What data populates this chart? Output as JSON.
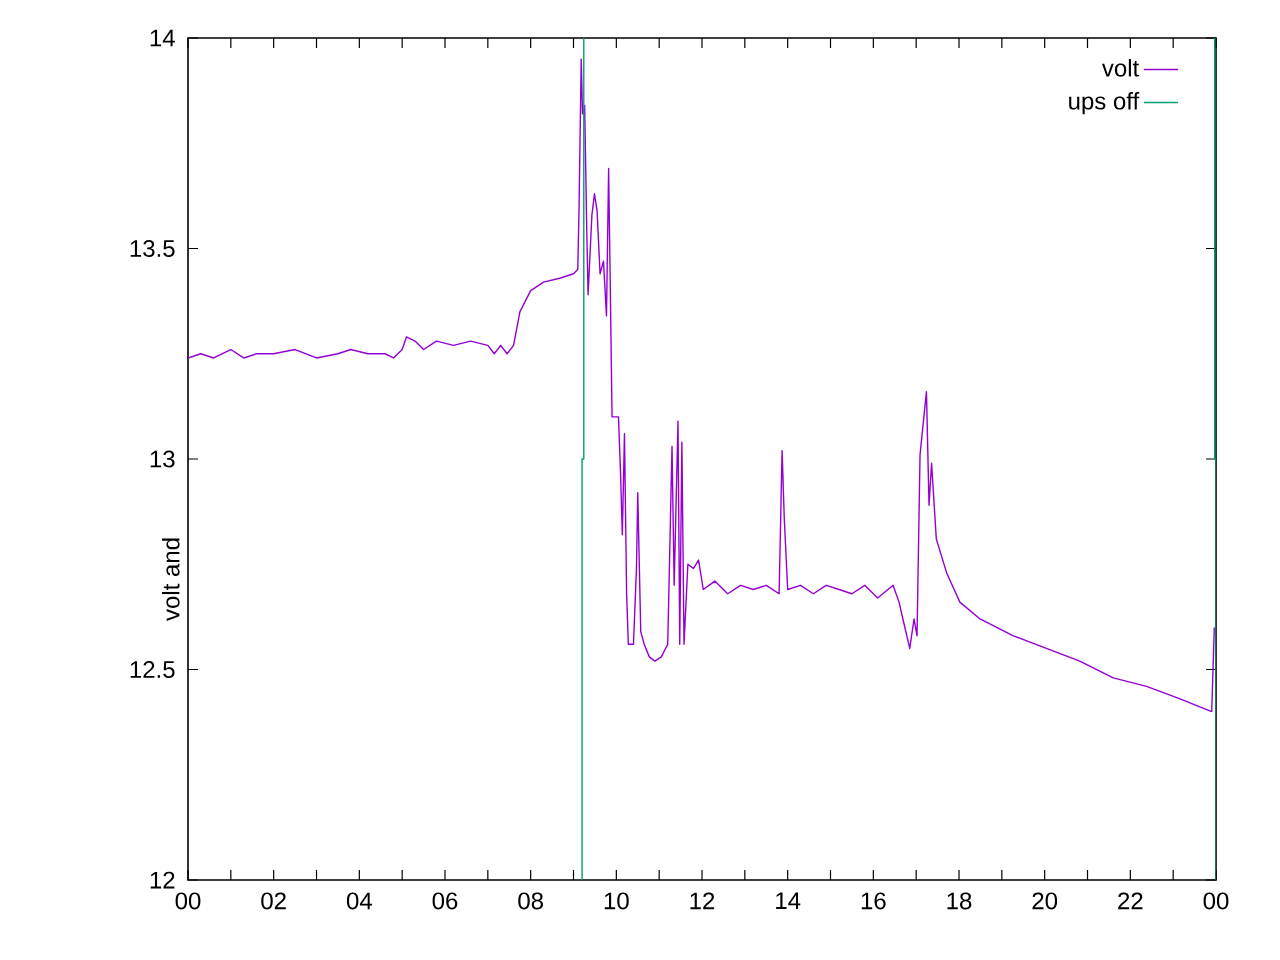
{
  "chart_data": {
    "type": "line",
    "ylabel": "volt and",
    "xlim": [
      0,
      24
    ],
    "ylim": [
      12,
      14
    ],
    "xticks": [
      {
        "value": 0,
        "label": "00"
      },
      {
        "value": 1,
        "label": null
      },
      {
        "value": 2,
        "label": "02"
      },
      {
        "value": 3,
        "label": null
      },
      {
        "value": 4,
        "label": "04"
      },
      {
        "value": 5,
        "label": null
      },
      {
        "value": 6,
        "label": "06"
      },
      {
        "value": 7,
        "label": null
      },
      {
        "value": 8,
        "label": "08"
      },
      {
        "value": 9,
        "label": null
      },
      {
        "value": 10,
        "label": "10"
      },
      {
        "value": 11,
        "label": null
      },
      {
        "value": 12,
        "label": "12"
      },
      {
        "value": 13,
        "label": null
      },
      {
        "value": 14,
        "label": "14"
      },
      {
        "value": 15,
        "label": null
      },
      {
        "value": 16,
        "label": "16"
      },
      {
        "value": 17,
        "label": null
      },
      {
        "value": 18,
        "label": "18"
      },
      {
        "value": 19,
        "label": null
      },
      {
        "value": 20,
        "label": "20"
      },
      {
        "value": 21,
        "label": null
      },
      {
        "value": 22,
        "label": "22"
      },
      {
        "value": 23,
        "label": null
      },
      {
        "value": 24,
        "label": "00"
      }
    ],
    "yticks": [
      12,
      12.5,
      13,
      13.5,
      14
    ],
    "legend": "top right",
    "marker": "none",
    "line_style": "solid",
    "series": [
      {
        "name": "volt",
        "color": "#9400d3",
        "x": [
          0,
          0.3,
          0.6,
          1.0,
          1.3,
          1.6,
          2.0,
          2.5,
          3.0,
          3.5,
          3.8,
          4.2,
          4.6,
          4.8,
          5.0,
          5.1,
          5.3,
          5.5,
          5.8,
          6.2,
          6.6,
          7.0,
          7.15,
          7.3,
          7.45,
          7.6,
          7.75,
          8.0,
          8.3,
          8.7,
          9.0,
          9.1,
          9.13,
          9.18,
          9.21,
          9.26,
          9.31,
          9.34,
          9.43,
          9.49,
          9.55,
          9.62,
          9.7,
          9.77,
          9.82,
          9.86,
          9.9,
          10.05,
          10.1,
          10.14,
          10.19,
          10.24,
          10.28,
          10.4,
          10.47,
          10.5,
          10.57,
          10.65,
          10.77,
          10.9,
          11.05,
          11.2,
          11.3,
          11.35,
          11.44,
          11.48,
          11.53,
          11.58,
          11.67,
          11.8,
          11.92,
          12.03,
          12.3,
          12.6,
          12.9,
          13.2,
          13.5,
          13.8,
          13.87,
          13.92,
          14.0,
          14.3,
          14.6,
          14.9,
          15.2,
          15.5,
          15.8,
          16.1,
          16.46,
          16.6,
          16.69,
          16.85,
          16.95,
          17.02,
          17.09,
          17.16,
          17.24,
          17.3,
          17.36,
          17.47,
          17.71,
          18.02,
          18.49,
          19.27,
          20.04,
          20.82,
          21.6,
          22.38,
          23.16,
          23.9,
          23.96
        ],
        "values": [
          13.24,
          13.25,
          13.24,
          13.26,
          13.24,
          13.25,
          13.25,
          13.26,
          13.24,
          13.25,
          13.26,
          13.25,
          13.25,
          13.24,
          13.26,
          13.29,
          13.28,
          13.26,
          13.28,
          13.27,
          13.28,
          13.27,
          13.25,
          13.27,
          13.25,
          13.27,
          13.35,
          13.4,
          13.42,
          13.43,
          13.44,
          13.45,
          13.6,
          13.95,
          13.82,
          13.84,
          13.54,
          13.39,
          13.58,
          13.63,
          13.59,
          13.44,
          13.47,
          13.34,
          13.69,
          13.4,
          13.1,
          13.1,
          12.96,
          12.82,
          13.06,
          12.68,
          12.56,
          12.56,
          12.74,
          12.92,
          12.59,
          12.56,
          12.53,
          12.52,
          12.53,
          12.56,
          13.03,
          12.7,
          13.09,
          12.56,
          13.04,
          12.56,
          12.75,
          12.74,
          12.76,
          12.69,
          12.71,
          12.68,
          12.7,
          12.69,
          12.7,
          12.68,
          13.02,
          12.86,
          12.69,
          12.7,
          12.68,
          12.7,
          12.69,
          12.68,
          12.7,
          12.67,
          12.7,
          12.66,
          12.62,
          12.55,
          12.62,
          12.58,
          13.01,
          13.08,
          13.16,
          12.89,
          12.99,
          12.81,
          12.73,
          12.66,
          12.62,
          12.58,
          12.55,
          12.52,
          12.48,
          12.46,
          12.43,
          12.4,
          12.6
        ]
      },
      {
        "name": "ups off",
        "color": "#009e73",
        "x": [
          9.2,
          9.2,
          9.24,
          9.24,
          16,
          23.97,
          23.97,
          24,
          24
        ],
        "values": [
          12,
          13,
          13,
          14,
          null,
          14,
          13,
          13,
          12
        ]
      }
    ]
  }
}
